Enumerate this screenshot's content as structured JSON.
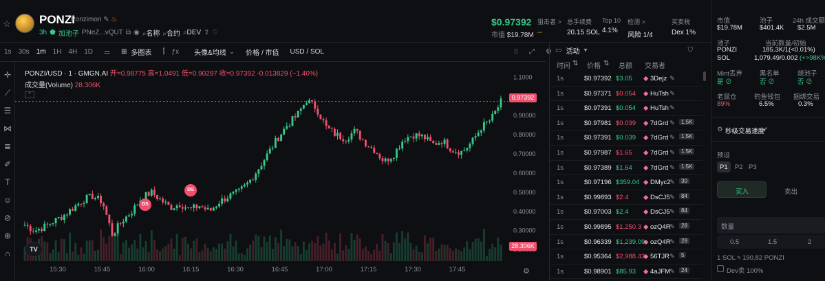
{
  "header": {
    "name": "PONZI",
    "fullname": "Ponzimon",
    "age": "3h",
    "pool": "加池子",
    "address": "PNeZ...vQUT",
    "links": [
      "名称",
      "合约",
      "DEV"
    ],
    "price": "$0.97392",
    "mcap_label": "市值",
    "mcap": "$19.78M",
    "stats": [
      {
        "label": "狙击者 >",
        "value": "--"
      },
      {
        "label": "总手续费",
        "value": "20.15 SOL"
      },
      {
        "label": "Top 10",
        "value": "4.1%"
      },
      {
        "label": "检测 >",
        "value": "风险 1/4"
      },
      {
        "label": "买卖税",
        "value": "Dex 1%"
      }
    ]
  },
  "toolbar": {
    "intervals": [
      "1s",
      "30s",
      "1m",
      "1H",
      "4H",
      "1D"
    ],
    "active_interval": "1m",
    "multi_chart": "多图表",
    "indicators": "头像&均线",
    "price_mcap": "价格 / 市值",
    "currency": "USD / SOL"
  },
  "chart": {
    "symbol": "PONZI/USD · 1 · GMGN.AI",
    "open": "开=0.98775",
    "high": "高=1.0491",
    "low": "低=0.90297",
    "close": "收=0.97392",
    "change": "-0.013829 (−1.40%)",
    "volume_label": "成交量(Volume)",
    "volume_value": "28.306K",
    "price_tag": "0.97392",
    "volume_tag": "28.306K",
    "marker_label": "DS",
    "tv_logo": "TV"
  },
  "chart_data": {
    "type": "candlestick",
    "x_ticks": [
      "15:30",
      "15:45",
      "16:00",
      "16:15",
      "16:30",
      "16:45",
      "17:00",
      "17:15",
      "17:30",
      "17:45"
    ],
    "y_ticks": [
      "1.1000",
      "1.0000",
      "0.90000",
      "0.80000",
      "0.70000",
      "0.60000",
      "0.50000",
      "0.40000",
      "0.30000",
      "0.20000"
    ],
    "ylim": [
      0.17,
      1.13
    ],
    "last_price": 0.97392,
    "close_path": [
      0.33,
      0.3,
      0.32,
      0.35,
      0.38,
      0.42,
      0.46,
      0.48,
      0.45,
      0.28,
      0.35,
      0.4,
      0.47,
      0.5,
      0.46,
      0.42,
      0.44,
      0.41,
      0.43,
      0.4,
      0.45,
      0.48,
      0.5,
      0.55,
      0.62,
      0.7,
      0.78,
      0.85,
      0.9,
      0.98,
      0.94,
      0.84,
      0.8,
      0.78,
      0.82,
      0.76,
      0.72,
      0.66,
      0.7,
      0.78,
      0.8,
      0.79,
      0.75,
      0.77,
      0.72,
      0.71,
      0.76,
      0.84,
      0.88,
      0.97
    ]
  },
  "activity": {
    "title": "活动",
    "columns": [
      "时间",
      "价格",
      "总额",
      "交易者"
    ],
    "rows": [
      {
        "time": "1s",
        "price": "$0.97392",
        "amount": "$3.05",
        "side": "buy",
        "trader": "3Dejz",
        "tag": ""
      },
      {
        "time": "1s",
        "price": "$0.97371",
        "amount": "$0.054",
        "side": "sell",
        "trader": "HuTsh",
        "tag": ""
      },
      {
        "time": "1s",
        "price": "$0.97391",
        "amount": "$0.054",
        "side": "buy",
        "trader": "HuTsh",
        "tag": ""
      },
      {
        "time": "1s",
        "price": "$0.97981",
        "amount": "$0.039",
        "side": "sell",
        "trader": "7dGrd",
        "tag": "1.5K"
      },
      {
        "time": "1s",
        "price": "$0.97391",
        "amount": "$0.039",
        "side": "buy",
        "trader": "7dGrd",
        "tag": "1.5K"
      },
      {
        "time": "1s",
        "price": "$0.97987",
        "amount": "$1.65",
        "side": "sell",
        "trader": "7dGrd",
        "tag": "1.5K"
      },
      {
        "time": "1s",
        "price": "$0.97389",
        "amount": "$1.64",
        "side": "buy",
        "trader": "7dGrd",
        "tag": "1.5K"
      },
      {
        "time": "1s",
        "price": "$0.97196",
        "amount": "$359.04",
        "side": "buy",
        "trader": "DMyc2",
        "tag": "30"
      },
      {
        "time": "1s",
        "price": "$0.99893",
        "amount": "$2.4",
        "side": "sell",
        "trader": "DsCJ5",
        "tag": "84"
      },
      {
        "time": "1s",
        "price": "$0.97003",
        "amount": "$2.4",
        "side": "buy",
        "trader": "DsCJ5",
        "tag": "84"
      },
      {
        "time": "1s",
        "price": "$0.99895",
        "amount": "$1,250.3",
        "side": "sell",
        "trader": "ozQ4R",
        "tag": "28"
      },
      {
        "time": "1s",
        "price": "$0.96339",
        "amount": "$1,239.09",
        "side": "buy",
        "trader": "ozQ4R",
        "tag": "28"
      },
      {
        "time": "1s",
        "price": "$0.95364",
        "amount": "$2,988.43",
        "side": "sell",
        "trader": "56TJR",
        "tag": "5"
      },
      {
        "time": "1s",
        "price": "$0.98901",
        "amount": "$85.93",
        "side": "buy",
        "trader": "4aJFM",
        "tag": "24"
      }
    ]
  },
  "rpanel": {
    "top_stats": [
      {
        "label": "市值",
        "value": "$19.78M"
      },
      {
        "label": "池子",
        "value": "$401.4K"
      },
      {
        "label": "24h 成交额",
        "value": "$2.5M"
      }
    ],
    "pool_label": "池子",
    "pool_amount_label": "当前数量/初始",
    "pool_rows": [
      {
        "token": "PONZI",
        "amount": "185.3K/1(<0.01%)",
        "extra": ""
      },
      {
        "token": "SOL",
        "amount": "1,079.49/0.002",
        "extra": "(+>98K%)"
      }
    ],
    "checks": [
      {
        "label": "Mint丢弃",
        "value": "是"
      },
      {
        "label": "黑名单",
        "value": "否"
      },
      {
        "label": "烧池子",
        "value": "否"
      }
    ],
    "holders": [
      {
        "label": "老鼠仓",
        "value": "89%"
      },
      {
        "label": "钓鱼钱包",
        "value": "6.5%"
      },
      {
        "label": "捆绑交易",
        "value": "0.3%"
      }
    ],
    "speed_label": "秒级交易速度",
    "preset_label": "预设",
    "presets": [
      "P1",
      "P2",
      "P3"
    ],
    "buy": "买入",
    "sell": "卖出",
    "qty_placeholder": "数量",
    "qty_options": [
      "0.5",
      "1.5",
      "2"
    ],
    "rate": "1 SOL ≈ 190.82 PONZI",
    "dev_sell": "Dev卖 100%"
  }
}
